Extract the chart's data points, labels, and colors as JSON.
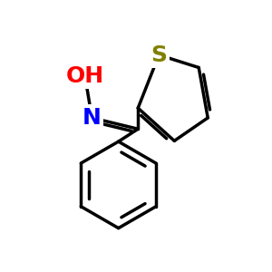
{
  "background_color": "#ffffff",
  "bond_color": "#000000",
  "bond_width": 2.5,
  "S_color": "#808000",
  "N_color": "#0000ff",
  "O_color": "#ff0000",
  "figsize": [
    3.0,
    3.0
  ],
  "dpi": 100,
  "atoms": {
    "S": {
      "label": "S",
      "color": "#808000",
      "fontsize": 18
    },
    "N": {
      "label": "N",
      "color": "#0000ff",
      "fontsize": 18
    },
    "OH": {
      "label": "OH",
      "color": "#ff0000",
      "fontsize": 18
    }
  }
}
